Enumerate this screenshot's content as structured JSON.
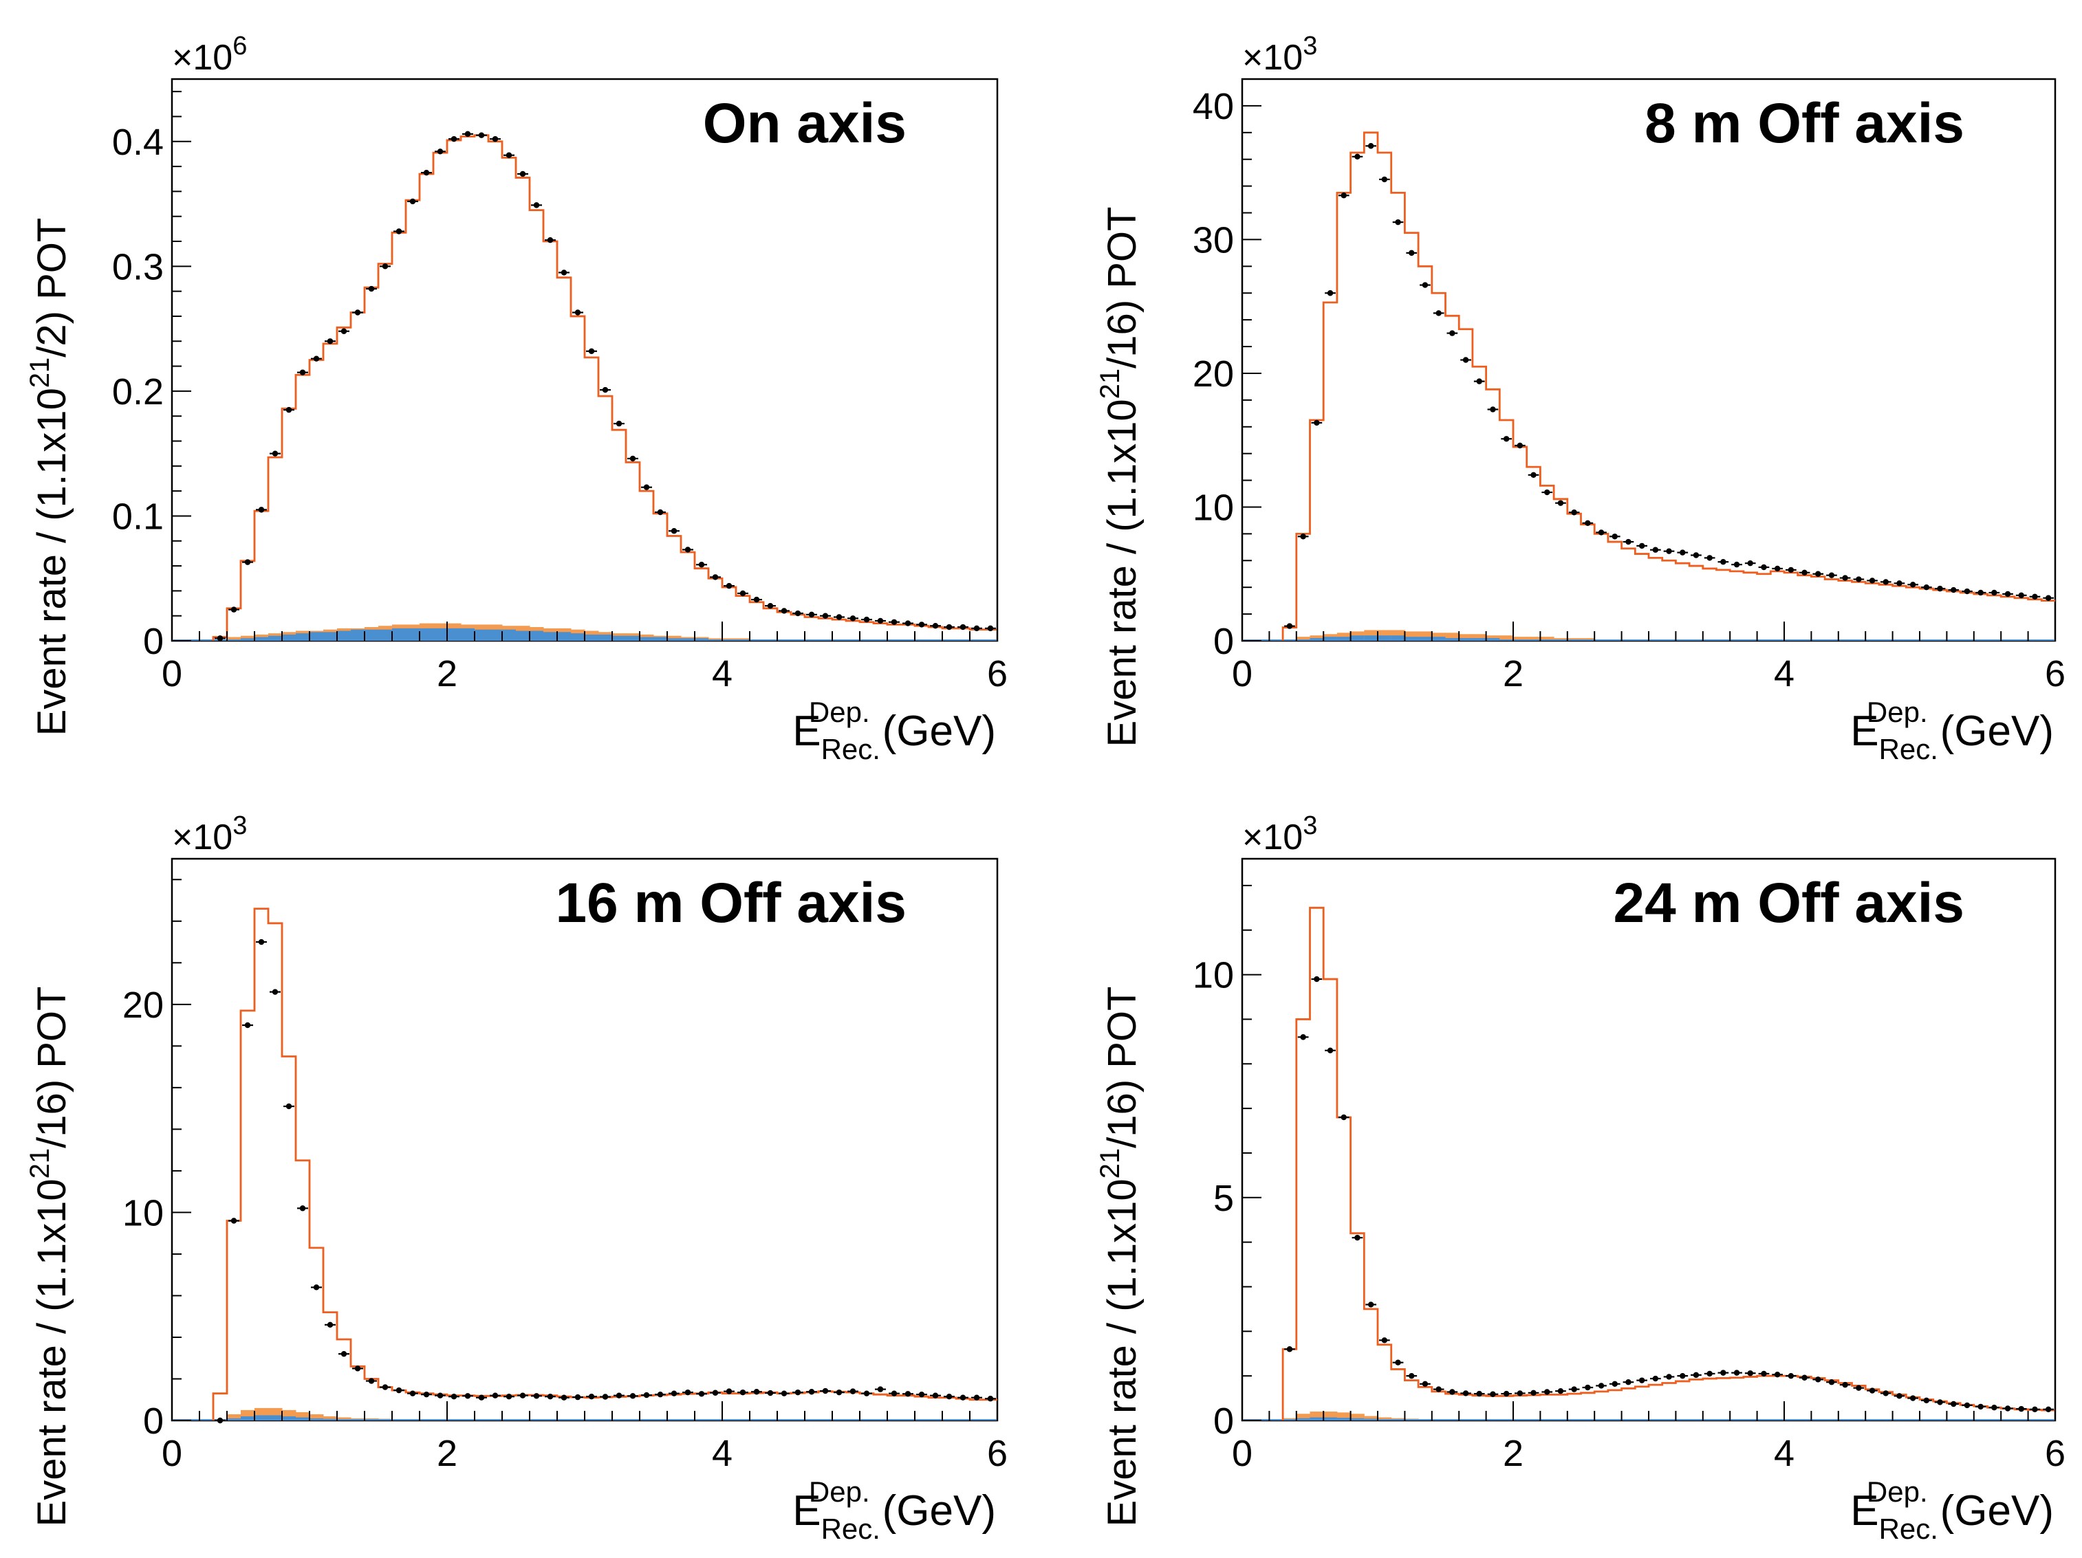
{
  "colors": {
    "prediction": "#ee5f1f",
    "band_orange": "#f39b50",
    "band_blue": "#4a8fd0",
    "points": "#000000",
    "axis": "#000000"
  },
  "chart_data": [
    {
      "type": "histogram",
      "title": "On axis",
      "xlabel_main": "E",
      "xlabel_sub": "Rec.",
      "xlabel_sup": "Dep.",
      "xlabel_unit": "(GeV)",
      "ylabel_pre": "Event rate / (1.1x10",
      "ylabel_exp": "21",
      "ylabel_post": "/2) POT",
      "multiplier_base": "×10",
      "multiplier_exp": "6",
      "xlim": [
        0,
        6
      ],
      "ylim": [
        0,
        0.45
      ],
      "xticks": [
        0,
        2,
        4,
        6
      ],
      "yticks": [
        0,
        0.1,
        0.2,
        0.3,
        0.4
      ],
      "ytick_labels": [
        "0",
        "0.1",
        "0.2",
        "0.3",
        "0.4"
      ],
      "bin_edges_start": 0.3,
      "bin_width": 0.1,
      "prediction": [
        0.003,
        0.026,
        0.064,
        0.104,
        0.147,
        0.186,
        0.213,
        0.225,
        0.238,
        0.251,
        0.263,
        0.283,
        0.302,
        0.327,
        0.353,
        0.374,
        0.391,
        0.401,
        0.404,
        0.405,
        0.4,
        0.387,
        0.371,
        0.345,
        0.32,
        0.291,
        0.26,
        0.227,
        0.196,
        0.169,
        0.143,
        0.12,
        0.102,
        0.084,
        0.071,
        0.058,
        0.05,
        0.043,
        0.036,
        0.031,
        0.026,
        0.023,
        0.021,
        0.019,
        0.018,
        0.017,
        0.016,
        0.015,
        0.014,
        0.013,
        0.013,
        0.012,
        0.011,
        0.01,
        0.01,
        0.009,
        0.009
      ],
      "data": [
        0.002,
        0.025,
        0.063,
        0.105,
        0.15,
        0.185,
        0.215,
        0.226,
        0.24,
        0.248,
        0.263,
        0.282,
        0.3,
        0.328,
        0.352,
        0.375,
        0.392,
        0.402,
        0.406,
        0.405,
        0.402,
        0.389,
        0.374,
        0.349,
        0.321,
        0.295,
        0.263,
        0.232,
        0.201,
        0.174,
        0.146,
        0.123,
        0.103,
        0.088,
        0.073,
        0.061,
        0.051,
        0.044,
        0.038,
        0.033,
        0.028,
        0.024,
        0.022,
        0.021,
        0.02,
        0.019,
        0.018,
        0.017,
        0.016,
        0.015,
        0.014,
        0.013,
        0.012,
        0.011,
        0.011,
        0.01,
        0.01
      ],
      "band_orange": [
        0.001,
        0.003,
        0.004,
        0.005,
        0.006,
        0.007,
        0.008,
        0.008,
        0.009,
        0.01,
        0.01,
        0.011,
        0.012,
        0.013,
        0.013,
        0.014,
        0.014,
        0.014,
        0.013,
        0.013,
        0.013,
        0.012,
        0.012,
        0.011,
        0.01,
        0.01,
        0.009,
        0.008,
        0.007,
        0.006,
        0.006,
        0.005,
        0.004,
        0.004,
        0.003,
        0.003,
        0.002,
        0.002,
        0.002,
        0.001,
        0.001,
        0.001,
        0.001,
        0.001,
        0.001,
        0.001,
        0.001,
        0.001,
        0.001,
        0.001,
        0.001,
        0.001,
        0.001,
        0.001,
        0.001,
        0.001,
        0.001
      ],
      "band_blue": [
        0.0005,
        0.001,
        0.002,
        0.003,
        0.004,
        0.005,
        0.006,
        0.007,
        0.007,
        0.008,
        0.009,
        0.009,
        0.009,
        0.01,
        0.01,
        0.01,
        0.01,
        0.01,
        0.01,
        0.009,
        0.009,
        0.009,
        0.008,
        0.008,
        0.007,
        0.007,
        0.006,
        0.005,
        0.005,
        0.004,
        0.004,
        0.003,
        0.003,
        0.002,
        0.002,
        0.002,
        0.001,
        0.001,
        0.001,
        0.001,
        0.001,
        0.001,
        0.001,
        0.001,
        0.001,
        0.001,
        0.001,
        0.001,
        0.001,
        0.001,
        0.001,
        0.001,
        0.001,
        0.001,
        0.001,
        0.001,
        0.001
      ]
    },
    {
      "type": "histogram",
      "title": "8 m Off axis",
      "xlabel_main": "E",
      "xlabel_sub": "Rec.",
      "xlabel_sup": "Dep.",
      "xlabel_unit": "(GeV)",
      "ylabel_pre": "Event rate / (1.1x10",
      "ylabel_exp": "21",
      "ylabel_post": "/16) POT",
      "multiplier_base": "×10",
      "multiplier_exp": "3",
      "xlim": [
        0,
        6
      ],
      "ylim": [
        0,
        42
      ],
      "xticks": [
        0,
        2,
        4,
        6
      ],
      "yticks": [
        0,
        10,
        20,
        30,
        40
      ],
      "ytick_labels": [
        "0",
        "10",
        "20",
        "30",
        "40"
      ],
      "bin_edges_start": 0.3,
      "bin_width": 0.1,
      "prediction": [
        1.0,
        8.0,
        16.5,
        25.3,
        33.5,
        36.5,
        38.0,
        36.5,
        33.5,
        30.5,
        28.0,
        26.0,
        24.3,
        23.3,
        20.5,
        18.8,
        16.5,
        14.5,
        13.0,
        11.6,
        10.6,
        9.5,
        8.7,
        8.0,
        7.4,
        6.9,
        6.5,
        6.2,
        6.0,
        5.8,
        5.6,
        5.4,
        5.3,
        5.2,
        5.1,
        5.0,
        5.2,
        5.1,
        4.9,
        4.8,
        4.6,
        4.5,
        4.4,
        4.3,
        4.2,
        4.1,
        4.0,
        3.9,
        3.8,
        3.7,
        3.6,
        3.5,
        3.4,
        3.3,
        3.2,
        3.1,
        3.0
      ],
      "data": [
        1.1,
        7.8,
        16.3,
        26.0,
        33.3,
        36.2,
        37.0,
        34.5,
        31.3,
        29.0,
        26.6,
        24.5,
        23.0,
        21.0,
        19.4,
        17.3,
        15.1,
        14.6,
        12.4,
        11.1,
        10.3,
        9.6,
        8.8,
        8.1,
        7.8,
        7.4,
        7.1,
        6.8,
        6.7,
        6.6,
        6.4,
        6.2,
        5.9,
        5.7,
        5.8,
        5.5,
        5.4,
        5.3,
        5.1,
        5.0,
        4.9,
        4.7,
        4.6,
        4.5,
        4.4,
        4.3,
        4.2,
        4.0,
        3.9,
        3.8,
        3.7,
        3.6,
        3.6,
        3.5,
        3.4,
        3.3,
        3.2
      ],
      "band_orange": [
        0.1,
        0.3,
        0.4,
        0.5,
        0.6,
        0.7,
        0.8,
        0.8,
        0.8,
        0.7,
        0.7,
        0.6,
        0.6,
        0.5,
        0.5,
        0.4,
        0.4,
        0.3,
        0.3,
        0.3,
        0.2,
        0.2,
        0.2,
        0.1,
        0.1,
        0.1,
        0.1,
        0.1,
        0.1,
        0.1,
        0.1,
        0.1,
        0.1,
        0.1,
        0.1,
        0.1,
        0.1,
        0.1,
        0.1,
        0.1,
        0.1,
        0.1,
        0.1,
        0.1,
        0.1,
        0.1,
        0.1,
        0.1,
        0.1,
        0.1,
        0.1,
        0.1,
        0.1,
        0.1,
        0.1,
        0.1,
        0.1
      ],
      "band_blue": [
        0.05,
        0.1,
        0.2,
        0.3,
        0.3,
        0.4,
        0.4,
        0.4,
        0.4,
        0.3,
        0.3,
        0.3,
        0.2,
        0.2,
        0.2,
        0.2,
        0.1,
        0.1,
        0.1,
        0.1,
        0.1,
        0.1,
        0.1,
        0.05,
        0.05,
        0.05,
        0.05,
        0.05,
        0.05,
        0.05,
        0.05,
        0.05,
        0.05,
        0.05,
        0.05,
        0.05,
        0.05,
        0.05,
        0.05,
        0.05,
        0.05,
        0.05,
        0.05,
        0.05,
        0.05,
        0.05,
        0.05,
        0.05,
        0.05,
        0.05,
        0.05,
        0.05,
        0.05,
        0.05,
        0.05,
        0.05,
        0.05
      ]
    },
    {
      "type": "histogram",
      "title": "16 m Off axis",
      "xlabel_main": "E",
      "xlabel_sub": "Rec.",
      "xlabel_sup": "Dep.",
      "xlabel_unit": "(GeV)",
      "ylabel_pre": "Event rate / (1.1x10",
      "ylabel_exp": "21",
      "ylabel_post": "/16) POT",
      "multiplier_base": "×10",
      "multiplier_exp": "3",
      "xlim": [
        0,
        6
      ],
      "ylim": [
        0,
        27
      ],
      "xticks": [
        0,
        2,
        4,
        6
      ],
      "yticks": [
        0,
        10,
        20
      ],
      "ytick_labels": [
        "0",
        "10",
        "20"
      ],
      "bin_edges_start": 0.3,
      "bin_width": 0.1,
      "prediction": [
        1.3,
        9.6,
        19.7,
        24.6,
        23.9,
        17.5,
        12.5,
        8.3,
        5.2,
        3.9,
        2.6,
        2.0,
        1.6,
        1.45,
        1.35,
        1.3,
        1.25,
        1.2,
        1.2,
        1.18,
        1.18,
        1.2,
        1.22,
        1.22,
        1.2,
        1.15,
        1.12,
        1.1,
        1.12,
        1.14,
        1.16,
        1.2,
        1.22,
        1.25,
        1.28,
        1.3,
        1.35,
        1.3,
        1.3,
        1.32,
        1.35,
        1.3,
        1.32,
        1.35,
        1.4,
        1.38,
        1.35,
        1.3,
        1.25,
        1.2,
        1.2,
        1.15,
        1.1,
        1.1,
        1.05,
        1.0,
        1.0
      ],
      "data": [
        0.0,
        9.6,
        19.0,
        23.0,
        20.6,
        15.1,
        10.2,
        6.4,
        4.6,
        3.2,
        2.5,
        1.9,
        1.6,
        1.45,
        1.3,
        1.25,
        1.2,
        1.15,
        1.18,
        1.1,
        1.2,
        1.15,
        1.2,
        1.18,
        1.15,
        1.1,
        1.12,
        1.15,
        1.14,
        1.2,
        1.18,
        1.22,
        1.25,
        1.3,
        1.35,
        1.28,
        1.33,
        1.4,
        1.35,
        1.38,
        1.32,
        1.3,
        1.35,
        1.38,
        1.42,
        1.35,
        1.4,
        1.3,
        1.5,
        1.3,
        1.28,
        1.25,
        1.2,
        1.15,
        1.1,
        1.1,
        1.05
      ],
      "band_orange": [
        0.05,
        0.3,
        0.5,
        0.6,
        0.6,
        0.5,
        0.4,
        0.3,
        0.2,
        0.15,
        0.1,
        0.1,
        0.08,
        0.05,
        0.05,
        0.05,
        0.05,
        0.05,
        0.05,
        0.05,
        0.05,
        0.05,
        0.05,
        0.05,
        0.05,
        0.05,
        0.05,
        0.05,
        0.05,
        0.05,
        0.05,
        0.05,
        0.05,
        0.05,
        0.05,
        0.05,
        0.05,
        0.05,
        0.05,
        0.05,
        0.05,
        0.05,
        0.05,
        0.05,
        0.05,
        0.05,
        0.05,
        0.05,
        0.05,
        0.05,
        0.05,
        0.05,
        0.05,
        0.05,
        0.05,
        0.05,
        0.05
      ],
      "band_blue": [
        0.02,
        0.1,
        0.2,
        0.25,
        0.25,
        0.2,
        0.15,
        0.1,
        0.08,
        0.05,
        0.04,
        0.03,
        0.03,
        0.03,
        0.03,
        0.03,
        0.03,
        0.03,
        0.03,
        0.03,
        0.03,
        0.03,
        0.03,
        0.03,
        0.03,
        0.03,
        0.03,
        0.03,
        0.03,
        0.03,
        0.03,
        0.03,
        0.03,
        0.03,
        0.03,
        0.03,
        0.03,
        0.03,
        0.03,
        0.03,
        0.03,
        0.03,
        0.03,
        0.03,
        0.03,
        0.03,
        0.03,
        0.03,
        0.03,
        0.03,
        0.03,
        0.03,
        0.03,
        0.03,
        0.03,
        0.03,
        0.03
      ]
    },
    {
      "type": "histogram",
      "title": "24 m Off axis",
      "xlabel_main": "E",
      "xlabel_sub": "Rec.",
      "xlabel_sup": "Dep.",
      "xlabel_unit": "(GeV)",
      "ylabel_pre": "Event rate / (1.1x10",
      "ylabel_exp": "21",
      "ylabel_post": "/16) POT",
      "multiplier_base": "×10",
      "multiplier_exp": "3",
      "xlim": [
        0,
        6
      ],
      "ylim": [
        0,
        12.6
      ],
      "xticks": [
        0,
        2,
        4,
        6
      ],
      "yticks": [
        0,
        5,
        10
      ],
      "ytick_labels": [
        "0",
        "5",
        "10"
      ],
      "bin_edges_start": 0.3,
      "bin_width": 0.1,
      "prediction": [
        1.6,
        9.0,
        11.5,
        9.9,
        6.8,
        4.2,
        2.5,
        1.7,
        1.15,
        0.9,
        0.75,
        0.65,
        0.6,
        0.58,
        0.56,
        0.55,
        0.55,
        0.56,
        0.57,
        0.58,
        0.58,
        0.6,
        0.62,
        0.65,
        0.68,
        0.72,
        0.76,
        0.8,
        0.84,
        0.88,
        0.92,
        0.94,
        0.95,
        0.96,
        0.98,
        1.0,
        1.0,
        1.0,
        0.98,
        0.95,
        0.9,
        0.84,
        0.78,
        0.7,
        0.64,
        0.58,
        0.52,
        0.47,
        0.43,
        0.39,
        0.35,
        0.32,
        0.29,
        0.27,
        0.25,
        0.24,
        0.23
      ],
      "data": [
        1.6,
        8.6,
        9.9,
        8.3,
        6.8,
        4.1,
        2.6,
        1.8,
        1.3,
        1.0,
        0.82,
        0.7,
        0.64,
        0.61,
        0.6,
        0.59,
        0.6,
        0.61,
        0.62,
        0.64,
        0.66,
        0.7,
        0.74,
        0.78,
        0.82,
        0.86,
        0.9,
        0.94,
        0.98,
        1.0,
        1.02,
        1.05,
        1.07,
        1.07,
        1.06,
        1.05,
        1.03,
        1.0,
        0.96,
        0.92,
        0.86,
        0.8,
        0.73,
        0.67,
        0.61,
        0.55,
        0.5,
        0.45,
        0.41,
        0.37,
        0.34,
        0.31,
        0.29,
        0.27,
        0.26,
        0.25,
        0.25
      ],
      "band_orange": [
        0.05,
        0.15,
        0.2,
        0.2,
        0.18,
        0.15,
        0.1,
        0.07,
        0.05,
        0.04,
        0.03,
        0.03,
        0.03,
        0.03,
        0.03,
        0.03,
        0.03,
        0.03,
        0.03,
        0.03,
        0.03,
        0.03,
        0.03,
        0.03,
        0.03,
        0.03,
        0.03,
        0.03,
        0.03,
        0.03,
        0.03,
        0.03,
        0.03,
        0.03,
        0.03,
        0.03,
        0.03,
        0.03,
        0.03,
        0.03,
        0.03,
        0.03,
        0.03,
        0.03,
        0.03,
        0.03,
        0.03,
        0.03,
        0.03,
        0.03,
        0.03,
        0.03,
        0.03,
        0.03,
        0.03,
        0.03,
        0.03
      ],
      "band_blue": [
        0.02,
        0.05,
        0.07,
        0.07,
        0.06,
        0.05,
        0.04,
        0.03,
        0.02,
        0.02,
        0.02,
        0.02,
        0.02,
        0.02,
        0.02,
        0.02,
        0.02,
        0.02,
        0.02,
        0.02,
        0.02,
        0.02,
        0.02,
        0.02,
        0.02,
        0.02,
        0.02,
        0.02,
        0.02,
        0.02,
        0.02,
        0.02,
        0.02,
        0.02,
        0.02,
        0.02,
        0.02,
        0.02,
        0.02,
        0.02,
        0.02,
        0.02,
        0.02,
        0.02,
        0.02,
        0.02,
        0.02,
        0.02,
        0.02,
        0.02,
        0.02,
        0.02,
        0.02,
        0.02,
        0.02,
        0.02,
        0.02
      ]
    }
  ]
}
